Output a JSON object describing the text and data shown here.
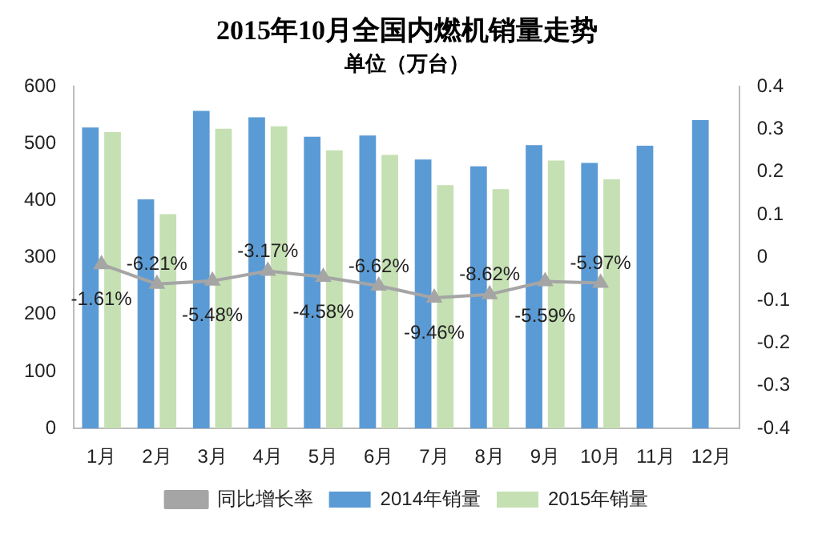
{
  "chart_data": {
    "type": "bar",
    "title": "2015年10月全国内燃机销量走势",
    "subtitle": "单位（万台）",
    "categories": [
      "1月",
      "2月",
      "3月",
      "4月",
      "5月",
      "6月",
      "7月",
      "8月",
      "9月",
      "10月",
      "11月",
      "12月"
    ],
    "series": [
      {
        "name": "2014年销量",
        "color": "#5b9bd5",
        "values": [
          528,
          402,
          557,
          546,
          512,
          514,
          472,
          460,
          497,
          466,
          496,
          541
        ]
      },
      {
        "name": "2015年销量",
        "color": "#c5e0b3",
        "values": [
          520,
          376,
          526,
          530,
          488,
          480,
          427,
          420,
          470,
          437,
          null,
          null
        ]
      },
      {
        "name": "同比增长率",
        "type": "line",
        "axis": "y2",
        "color": "#a5a5a5",
        "marker": "triangle",
        "values": [
          -0.0161,
          -0.0621,
          -0.0548,
          -0.0317,
          -0.0458,
          -0.0662,
          -0.0946,
          -0.0862,
          -0.0559,
          -0.0597,
          null,
          null
        ],
        "value_labels": [
          "-1.61%",
          "-6.21%",
          "-5.48%",
          "-3.17%",
          "-4.58%",
          "-6.62%",
          "-9.46%",
          "-8.62%",
          "-5.59%",
          "-5.97%",
          null,
          null
        ]
      }
    ],
    "ylim": [
      0,
      600
    ],
    "yticks": [
      0,
      100,
      200,
      300,
      400,
      500,
      600
    ],
    "y2lim": [
      -0.4,
      0.4
    ],
    "y2ticks": [
      0.4,
      0.3,
      0.2,
      0.1,
      0,
      -0.1,
      -0.2,
      -0.3,
      -0.4
    ],
    "grid": false,
    "legend": "bottom"
  }
}
